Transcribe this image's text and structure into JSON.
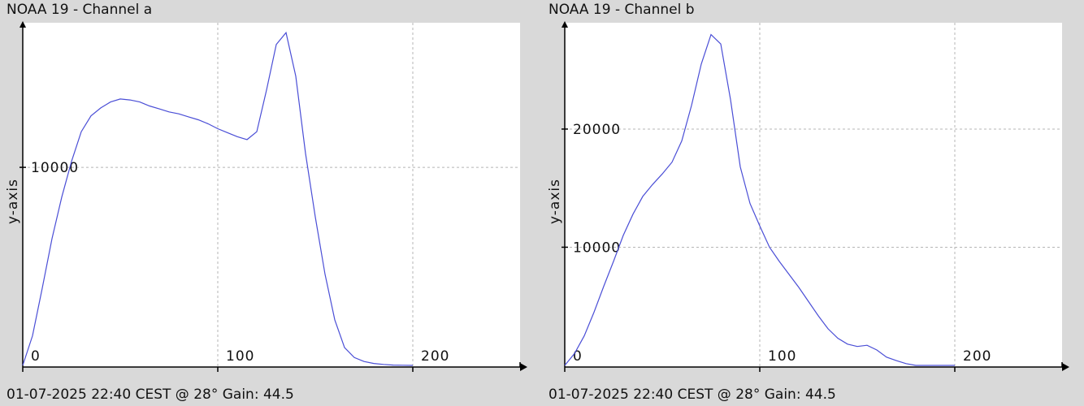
{
  "colors": {
    "background": "#d9d9d9",
    "plot_area": "#ffffff",
    "series": "#4a4ed6",
    "grid": "#b5b5b5"
  },
  "chart_data": [
    {
      "type": "line",
      "title": "NOAA 19 - Channel a",
      "footer": "01-07-2025 22:40 CEST @ 28° Gain: 44.5",
      "xlabel": "",
      "ylabel": "y-axis",
      "xlim": [
        0,
        255
      ],
      "ylim": [
        -80,
        17300
      ],
      "x_ticks": [
        0,
        100,
        200
      ],
      "y_ticks": [
        10000
      ],
      "grid": true,
      "series": [
        {
          "x": [
            0,
            5,
            10,
            15,
            20,
            25,
            30,
            35,
            40,
            45,
            50,
            55,
            60,
            65,
            70,
            75,
            80,
            85,
            90,
            95,
            100,
            105,
            110,
            115,
            120,
            125,
            130,
            135,
            140,
            145,
            150,
            155,
            160,
            165,
            170,
            175,
            180,
            185,
            190,
            195,
            200
          ],
          "y": [
            0,
            1500,
            3900,
            6400,
            8500,
            10300,
            11800,
            12600,
            13000,
            13300,
            13450,
            13400,
            13300,
            13100,
            12950,
            12800,
            12700,
            12550,
            12400,
            12200,
            11950,
            11750,
            11550,
            11400,
            11800,
            13900,
            16200,
            16800,
            14600,
            10700,
            7500,
            4600,
            2300,
            900,
            400,
            200,
            100,
            50,
            20,
            10,
            0
          ]
        }
      ]
    },
    {
      "type": "line",
      "title": "NOAA 19 - Channel b",
      "footer": "01-07-2025 22:40 CEST @ 28° Gain: 44.5",
      "xlabel": "",
      "ylabel": "y-axis",
      "xlim": [
        0,
        255
      ],
      "ylim": [
        -140,
        29000
      ],
      "x_ticks": [
        0,
        100,
        200
      ],
      "y_ticks": [
        10000,
        20000
      ],
      "grid": true,
      "series": [
        {
          "x": [
            0,
            5,
            10,
            15,
            20,
            25,
            30,
            35,
            40,
            45,
            50,
            55,
            60,
            65,
            70,
            75,
            80,
            85,
            90,
            95,
            100,
            105,
            110,
            115,
            120,
            125,
            130,
            135,
            140,
            145,
            150,
            155,
            160,
            165,
            170,
            175,
            180,
            185,
            190,
            195,
            200
          ],
          "y": [
            0,
            1000,
            2500,
            4500,
            6700,
            8800,
            11000,
            12800,
            14300,
            15300,
            16200,
            17200,
            19000,
            22000,
            25500,
            28000,
            27200,
            22500,
            16800,
            13700,
            11800,
            10000,
            8800,
            7700,
            6600,
            5400,
            4200,
            3100,
            2300,
            1800,
            1600,
            1700,
            1300,
            700,
            400,
            150,
            0,
            0,
            0,
            0,
            0
          ]
        }
      ]
    }
  ]
}
